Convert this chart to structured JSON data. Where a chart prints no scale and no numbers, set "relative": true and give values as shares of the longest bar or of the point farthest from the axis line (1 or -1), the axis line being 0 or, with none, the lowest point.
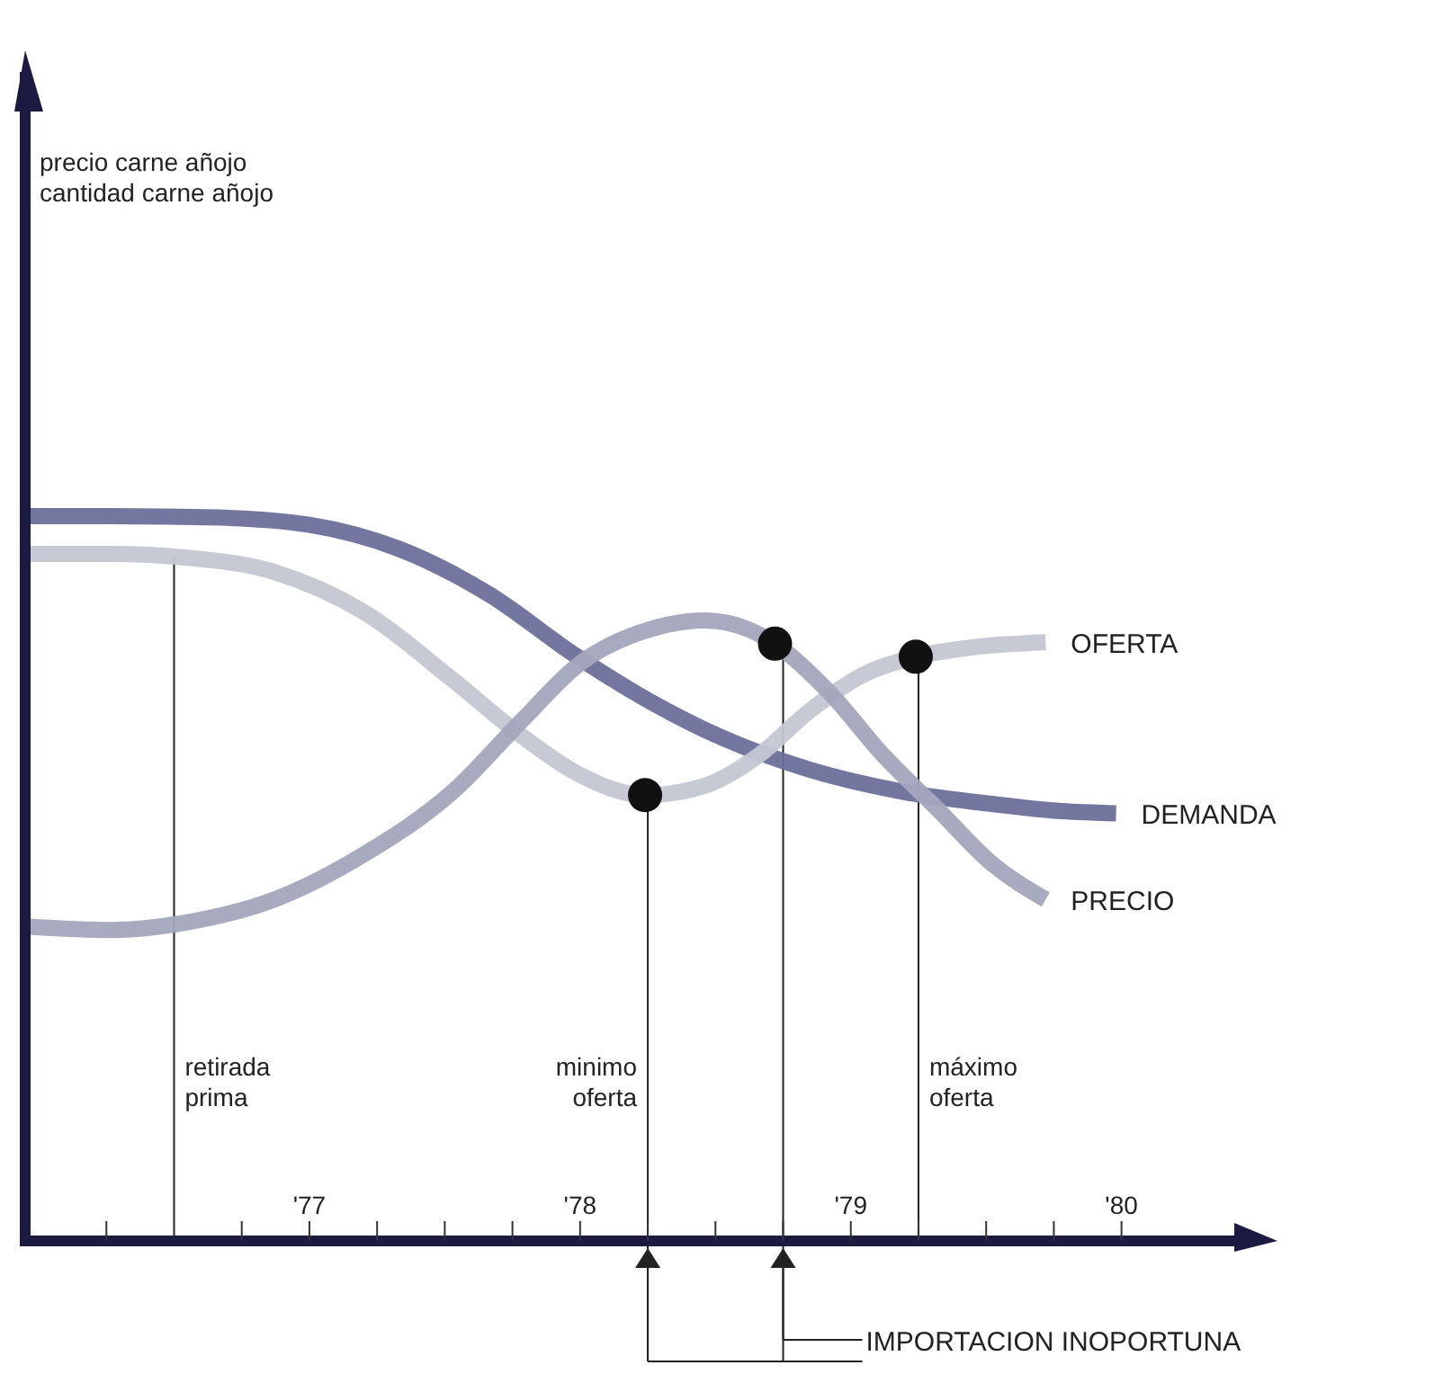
{
  "chart_data": {
    "type": "line",
    "relative": true,
    "annotations": [
      "precio carne añojo\ncantidad carne añojo",
      "IMPORTACION INOPORTUNA"
    ],
    "xlim": [
      1975.95,
      1980.43
    ],
    "xticks": [
      {
        "value": 1976.25,
        "label": null
      },
      {
        "value": 1976.75,
        "label": null
      },
      {
        "value": 1977,
        "label": "'77"
      },
      {
        "value": 1977.25,
        "label": null
      },
      {
        "value": 1977.5,
        "label": null
      },
      {
        "value": 1977.75,
        "label": null
      },
      {
        "value": 1978,
        "label": "'78"
      },
      {
        "value": 1978.25,
        "label": null
      },
      {
        "value": 1978.5,
        "label": null
      },
      {
        "value": 1978.75,
        "label": null
      },
      {
        "value": 1979,
        "label": "'79"
      },
      {
        "value": 1979.25,
        "label": null
      },
      {
        "value": 1979.5,
        "label": null
      },
      {
        "value": 1979.75,
        "label": null
      },
      {
        "value": 1980,
        "label": "'80"
      }
    ],
    "tick_labels": "x",
    "grid": false,
    "marker": "none",
    "series": [
      {
        "name": "DEMANDA",
        "color": "#6b6f9a",
        "x": [
          1975.95,
          1976.27,
          1976.67,
          1977,
          1977.33,
          1977.66,
          1977.99,
          1978.26,
          1978.52,
          1978.85,
          1979.19,
          1979.52,
          1979.78,
          1979.98
        ],
        "values": [
          1,
          1,
          0.998,
          0.988,
          0.955,
          0.893,
          0.806,
          0.744,
          0.695,
          0.65,
          0.62,
          0.603,
          0.593,
          0.59
        ]
      },
      {
        "name": "OFERTA",
        "color": "#c4c6d2",
        "x": [
          1975.95,
          1976.27,
          1976.54,
          1976.87,
          1977.2,
          1977.53,
          1977.79,
          1977.99,
          1978.24,
          1978.46,
          1978.66,
          1978.85,
          1979.05,
          1979.24,
          1979.45,
          1979.72
        ],
        "values": [
          0.948,
          0.948,
          0.943,
          0.923,
          0.868,
          0.774,
          0.695,
          0.645,
          0.615,
          0.628,
          0.67,
          0.732,
          0.782,
          0.806,
          0.819,
          0.826
        ]
      },
      {
        "name": "PRECIO",
        "color": "#a3a6bc",
        "x": [
          1975.95,
          1976.27,
          1976.54,
          1976.87,
          1977.2,
          1977.53,
          1977.79,
          1977.99,
          1978.26,
          1978.46,
          1978.62,
          1978.72,
          1978.92,
          1979.12,
          1979.32,
          1979.52,
          1979.72
        ],
        "values": [
          0.434,
          0.429,
          0.439,
          0.471,
          0.533,
          0.62,
          0.72,
          0.794,
          0.844,
          0.856,
          0.844,
          0.824,
          0.757,
          0.67,
          0.596,
          0.521,
          0.471
        ]
      },
      {
        "type": "scatter",
        "marker": "circle",
        "color": "#111111",
        "x": [
          1978.24,
          1978.72,
          1979.24
        ],
        "values": [
          0.615,
          0.824,
          0.806
        ]
      }
    ],
    "ref_lines": [
      {
        "axis": "x",
        "value": 1976.5,
        "label": "retirada prima"
      },
      {
        "axis": "x",
        "value": 1978.25,
        "label": "minimo oferta"
      },
      {
        "axis": "x",
        "value": 1978.75,
        "label": null
      },
      {
        "axis": "x",
        "value": 1979.25,
        "label": "máximo oferta"
      }
    ]
  }
}
